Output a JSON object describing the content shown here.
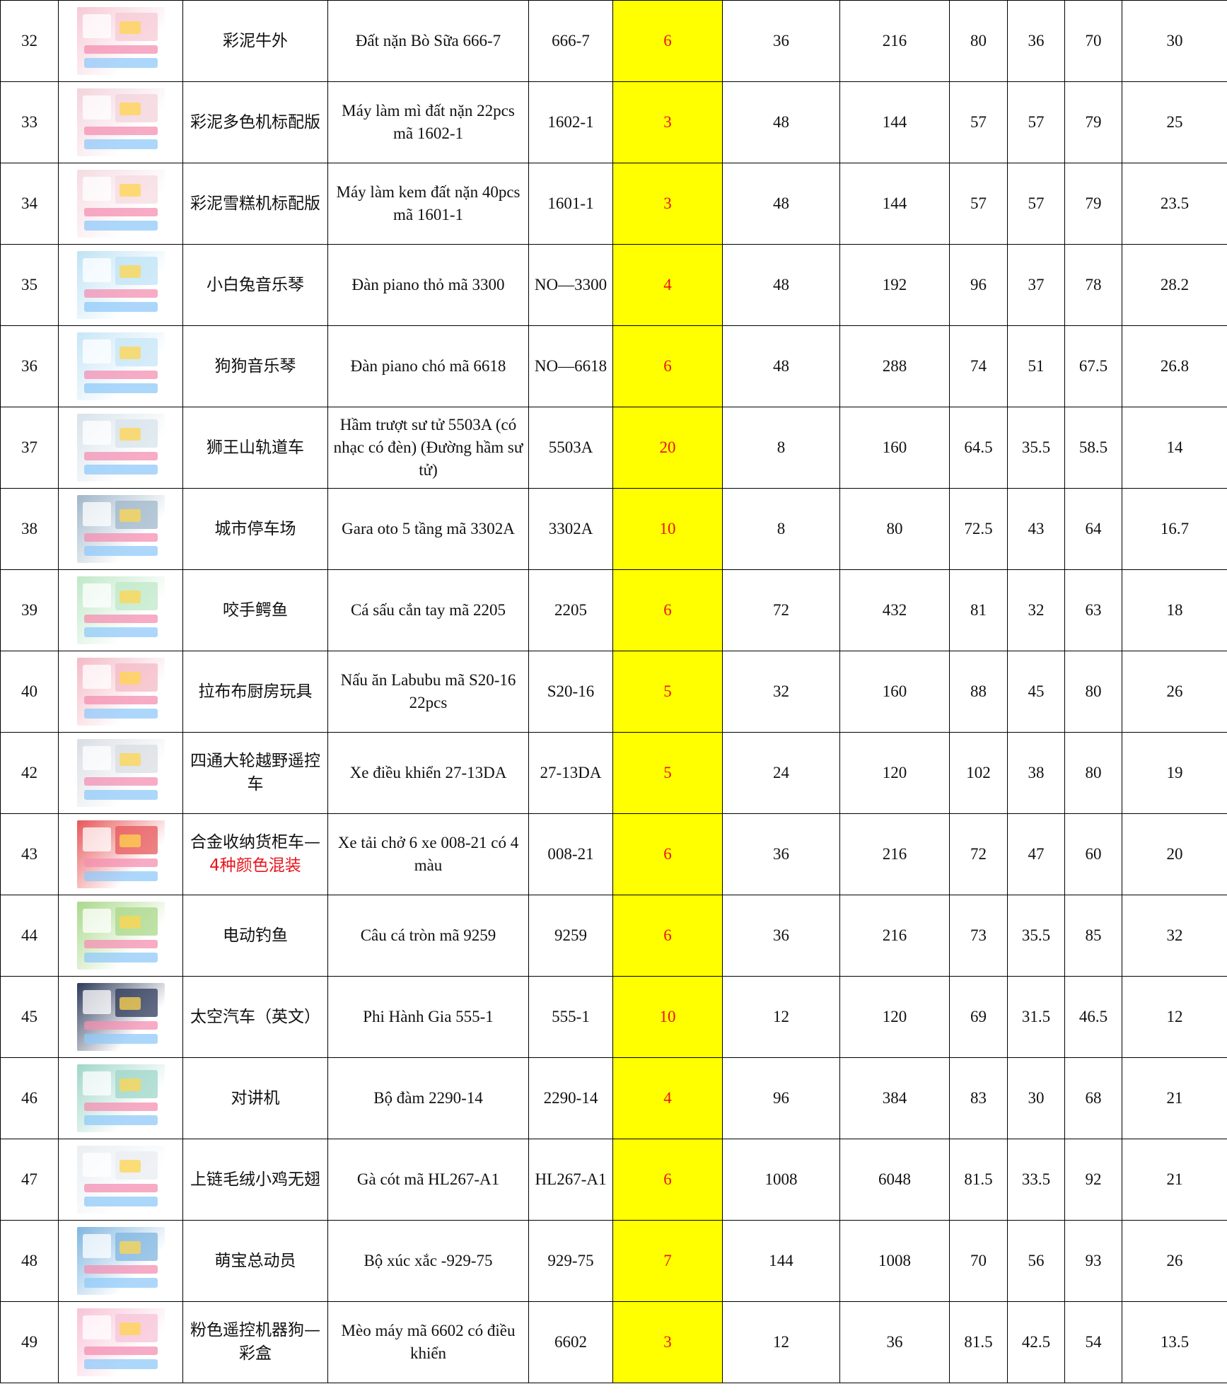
{
  "colors": {
    "qty_bg": "#ffff00",
    "qty_text": "#e8141b",
    "note_text": "#e8141b"
  },
  "rows": [
    {
      "no": "32",
      "image": "product-photo",
      "name": "彩泥牛外",
      "name_red": "",
      "desc": "Đất nặn Bò Sữa 666-7",
      "code": "666-7",
      "qty": "6",
      "c1": "36",
      "c2": "216",
      "d1": "80",
      "d2": "36",
      "d3": "70",
      "w": "30",
      "tint": "#f6c9d6"
    },
    {
      "no": "33",
      "image": "product-photo",
      "name": "彩泥多色机标配版",
      "name_red": "",
      "desc": "Máy làm mì đất nặn 22pcs mã 1602-1",
      "code": "1602-1",
      "qty": "3",
      "c1": "48",
      "c2": "144",
      "d1": "57",
      "d2": "57",
      "d3": "79",
      "w": "25",
      "tint": "#f3d3dc"
    },
    {
      "no": "34",
      "image": "product-photo",
      "name": "彩泥雪糕机标配版",
      "name_red": "",
      "desc": "Máy làm kem đất nặn 40pcs mã 1601-1",
      "code": "1601-1",
      "qty": "3",
      "c1": "48",
      "c2": "144",
      "d1": "57",
      "d2": "57",
      "d3": "79",
      "w": "23.5",
      "tint": "#f5dbe2"
    },
    {
      "no": "35",
      "image": "product-photo",
      "name": "小白兔音乐琴",
      "name_red": "",
      "desc": "Đàn piano thỏ mã 3300",
      "code": "NO—3300",
      "qty": "4",
      "c1": "48",
      "c2": "192",
      "d1": "96",
      "d2": "37",
      "d3": "78",
      "w": "28.2",
      "tint": "#bfe3f5"
    },
    {
      "no": "36",
      "image": "product-photo",
      "name": "狗狗音乐琴",
      "name_red": "",
      "desc": "Đàn piano chó mã 6618",
      "code": "NO—6618",
      "qty": "6",
      "c1": "48",
      "c2": "288",
      "d1": "74",
      "d2": "51",
      "d3": "67.5",
      "w": "26.8",
      "tint": "#c7e6f7"
    },
    {
      "no": "37",
      "image": "product-photo",
      "name": "狮王山轨道车",
      "name_red": "",
      "desc": "Hầm trượt sư tử 5503A (có nhạc có đèn) (Đường hầm sư tử)",
      "code": "5503A",
      "qty": "20",
      "c1": "8",
      "c2": "160",
      "d1": "64.5",
      "d2": "35.5",
      "d3": "58.5",
      "w": "14",
      "tint": "#d7e3ea"
    },
    {
      "no": "38",
      "image": "product-photo",
      "name": "城市停车场",
      "name_red": "",
      "desc": "Gara oto 5 tầng mã 3302A",
      "code": "3302A",
      "qty": "10",
      "c1": "8",
      "c2": "80",
      "d1": "72.5",
      "d2": "43",
      "d3": "64",
      "w": "16.7",
      "tint": "#9fb7c9"
    },
    {
      "no": "39",
      "image": "product-photo",
      "name": "咬手鳄鱼",
      "name_red": "",
      "desc": "Cá sấu cắn tay mã 2205",
      "code": "2205",
      "qty": "6",
      "c1": "72",
      "c2": "432",
      "d1": "81",
      "d2": "32",
      "d3": "63",
      "w": "18",
      "tint": "#bfe8c8"
    },
    {
      "no": "40",
      "image": "product-photo",
      "name": "拉布布厨房玩具",
      "name_red": "",
      "desc": "Nấu ăn Labubu mã S20-16 22pcs",
      "code": "S20-16",
      "qty": "5",
      "c1": "32",
      "c2": "160",
      "d1": "88",
      "d2": "45",
      "d3": "80",
      "w": "26",
      "tint": "#f4b9c6"
    },
    {
      "no": "42",
      "image": "product-photo",
      "name": "四通大轮越野遥控车",
      "name_red": "",
      "desc": "Xe điều khiển 27-13DA",
      "code": "27-13DA",
      "qty": "5",
      "c1": "24",
      "c2": "120",
      "d1": "102",
      "d2": "38",
      "d3": "80",
      "w": "19",
      "tint": "#d9dde3"
    },
    {
      "no": "43",
      "image": "product-photo",
      "name": "合金收纳货柜车—",
      "name_red": "4种颜色混装",
      "desc": "Xe tải chở 6 xe 008-21 có 4 màu",
      "code": "008-21",
      "qty": "6",
      "c1": "36",
      "c2": "216",
      "d1": "72",
      "d2": "47",
      "d3": "60",
      "w": "20",
      "tint": "#e7575a"
    },
    {
      "no": "44",
      "image": "product-photo",
      "name": "电动钓鱼",
      "name_red": "",
      "desc": "Câu cá tròn mã 9259",
      "code": "9259",
      "qty": "6",
      "c1": "36",
      "c2": "216",
      "d1": "73",
      "d2": "35.5",
      "d3": "85",
      "w": "32",
      "tint": "#a9d88a"
    },
    {
      "no": "45",
      "image": "product-photo",
      "name": "太空汽车（英文）",
      "name_red": "",
      "desc": "Phi Hành Gia 555-1",
      "code": "555-1",
      "qty": "10",
      "c1": "12",
      "c2": "120",
      "d1": "69",
      "d2": "31.5",
      "d3": "46.5",
      "w": "12",
      "tint": "#2d3a5a"
    },
    {
      "no": "46",
      "image": "product-photo",
      "name": "对讲机",
      "name_red": "",
      "desc": "Bộ đàm 2290-14",
      "code": "2290-14",
      "qty": "4",
      "c1": "96",
      "c2": "384",
      "d1": "83",
      "d2": "30",
      "d3": "68",
      "w": "21",
      "tint": "#9fd6c8"
    },
    {
      "no": "47",
      "image": "product-photo",
      "name": "上链毛绒小鸡无翅",
      "name_red": "",
      "desc": "Gà cót mã HL267-A1",
      "code": "HL267-A1",
      "qty": "6",
      "c1": "1008",
      "c2": "6048",
      "d1": "81.5",
      "d2": "33.5",
      "d3": "92",
      "w": "21",
      "tint": "#e9eef2"
    },
    {
      "no": "48",
      "image": "product-photo",
      "name": "萌宝总动员",
      "name_red": "",
      "desc": "Bộ xúc xắc -929-75",
      "code": "929-75",
      "qty": "7",
      "c1": "144",
      "c2": "1008",
      "d1": "70",
      "d2": "56",
      "d3": "93",
      "w": "26",
      "tint": "#7fb6e0"
    },
    {
      "no": "49",
      "image": "product-photo",
      "name": "粉色遥控机器狗—彩盒",
      "name_red": "",
      "desc": "Mèo máy mã 6602 có điều khiển",
      "code": "6602",
      "qty": "3",
      "c1": "12",
      "c2": "36",
      "d1": "81.5",
      "d2": "42.5",
      "d3": "54",
      "w": "13.5",
      "tint": "#f7c3d8"
    }
  ]
}
